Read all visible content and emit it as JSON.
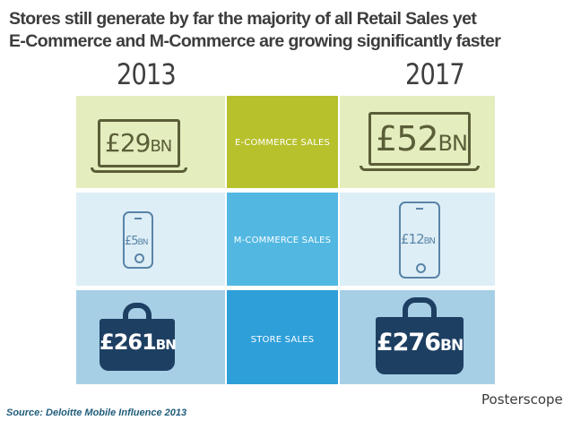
{
  "title": {
    "line1": "Stores still generate by far the majority of all Retail Sales yet",
    "line2": "E-Commerce and M-Commerce are growing significantly faster"
  },
  "years": {
    "left": "2013",
    "right": "2017"
  },
  "rows": [
    {
      "label": "E-COMMERCE SALES",
      "left_value": "£29",
      "left_unit": "BN",
      "right_value": "£52",
      "right_unit": "BN",
      "icon": "laptop-icon"
    },
    {
      "label": "M-COMMERCE SALES",
      "left_value": "£5",
      "left_unit": "BN",
      "right_value": "£12",
      "right_unit": "BN",
      "icon": "smartphone-icon"
    },
    {
      "label": "STORE SALES",
      "left_value": "£261",
      "left_unit": "BN",
      "right_value": "£276",
      "right_unit": "BN",
      "icon": "shopping-bag-icon"
    }
  ],
  "colors": {
    "row1_side": "#e4edbd",
    "row1_mid": "#b7c12c",
    "row2_side": "#ddeef6",
    "row2_mid": "#52b8e2",
    "row3_side": "#a6cfe6",
    "row3_mid": "#2e9fd9",
    "laptop": "#5a5e38",
    "phone": "#5a84a8",
    "bag": "#1d3f62"
  },
  "logo": "Posterscope",
  "source": "Source: Deloitte Mobile Influence 2013"
}
